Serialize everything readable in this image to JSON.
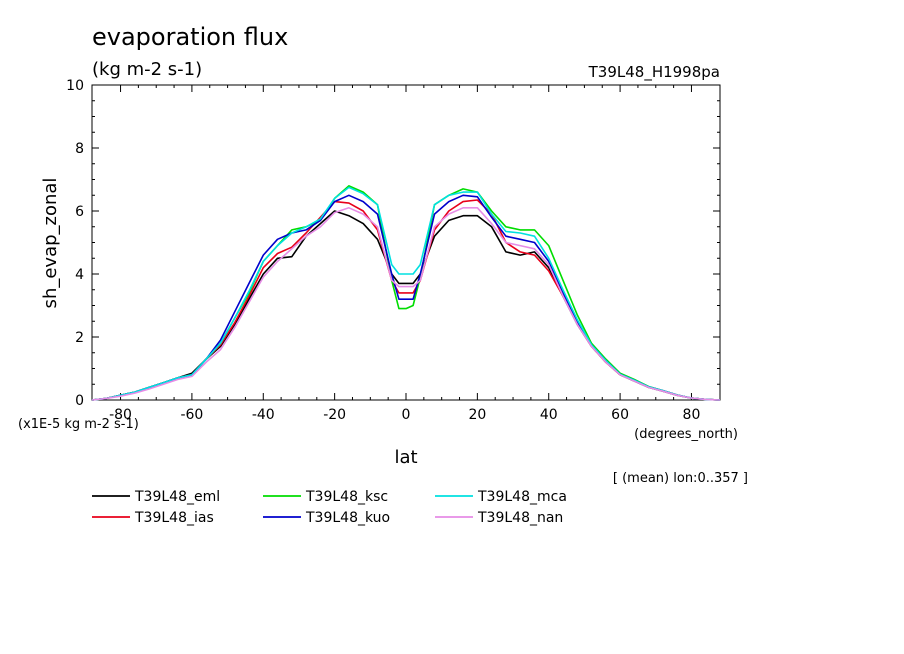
{
  "chart_data": {
    "type": "line",
    "title": "evaporation flux",
    "units_label": "(kg m-2 s-1)",
    "experiment": "T39L48_H1998pa",
    "ylabel": "sh_evap_zonal",
    "xlabel": "lat",
    "x_units": "(degrees_north)",
    "y_scale_note": "(x1E-5 kg m-2 s-1)",
    "mean_note": "[ (mean) lon:0..357 ]",
    "xlim": [
      -88,
      88
    ],
    "ylim": [
      0,
      10
    ],
    "x_ticks": [
      -80,
      -60,
      -40,
      -20,
      0,
      20,
      40,
      60,
      80
    ],
    "x_tick_labels": [
      "-80",
      "-60",
      "-40",
      "-20",
      "0",
      "20",
      "40",
      "60",
      "80"
    ],
    "y_ticks": [
      0,
      2,
      4,
      6,
      8,
      10
    ],
    "y_tick_labels": [
      "0",
      "2",
      "4",
      "6",
      "8",
      "10"
    ],
    "x": [
      -88,
      -84,
      -80,
      -76,
      -72,
      -68,
      -64,
      -60,
      -56,
      -52,
      -48,
      -44,
      -40,
      -36,
      -32,
      -28,
      -24,
      -20,
      -16,
      -12,
      -8,
      -4,
      -2,
      0,
      2,
      4,
      8,
      12,
      16,
      20,
      24,
      28,
      32,
      36,
      40,
      44,
      48,
      52,
      56,
      60,
      64,
      68,
      72,
      76,
      80,
      84,
      88
    ],
    "series": [
      {
        "name": "T39L48_eml",
        "color": "#000000",
        "values": [
          0.0,
          0.05,
          0.15,
          0.25,
          0.4,
          0.55,
          0.7,
          0.85,
          1.3,
          1.7,
          2.4,
          3.2,
          4.0,
          4.5,
          4.55,
          5.2,
          5.6,
          6.0,
          5.85,
          5.6,
          5.1,
          4.0,
          3.7,
          3.7,
          3.7,
          4.0,
          5.2,
          5.7,
          5.85,
          5.85,
          5.5,
          4.7,
          4.6,
          4.7,
          4.2,
          3.3,
          2.4,
          1.7,
          1.2,
          0.8,
          0.6,
          0.4,
          0.28,
          0.15,
          0.06,
          0.02,
          0.0
        ]
      },
      {
        "name": "T39L48_ias",
        "color": "#e8001a",
        "values": [
          0.0,
          0.05,
          0.15,
          0.25,
          0.4,
          0.55,
          0.7,
          0.8,
          1.3,
          1.75,
          2.45,
          3.3,
          4.2,
          4.65,
          4.85,
          5.3,
          5.8,
          6.3,
          6.25,
          6.0,
          5.4,
          3.8,
          3.4,
          3.4,
          3.4,
          3.8,
          5.4,
          6.0,
          6.3,
          6.35,
          5.9,
          5.0,
          4.7,
          4.6,
          4.1,
          3.3,
          2.45,
          1.7,
          1.2,
          0.8,
          0.62,
          0.42,
          0.3,
          0.16,
          0.06,
          0.02,
          0.0
        ]
      },
      {
        "name": "T39L48_ksc",
        "color": "#00dd00",
        "values": [
          0.0,
          0.05,
          0.15,
          0.25,
          0.4,
          0.55,
          0.7,
          0.8,
          1.3,
          1.8,
          2.6,
          3.4,
          4.4,
          4.9,
          5.4,
          5.5,
          5.7,
          6.4,
          6.8,
          6.6,
          6.2,
          3.8,
          2.9,
          2.9,
          3.0,
          3.9,
          6.2,
          6.5,
          6.7,
          6.6,
          6.0,
          5.5,
          5.4,
          5.4,
          4.9,
          3.8,
          2.7,
          1.8,
          1.3,
          0.85,
          0.65,
          0.43,
          0.3,
          0.16,
          0.06,
          0.02,
          0.0
        ]
      },
      {
        "name": "T39L48_kuo",
        "color": "#0000cc",
        "values": [
          0.0,
          0.05,
          0.15,
          0.25,
          0.4,
          0.55,
          0.7,
          0.8,
          1.3,
          1.9,
          2.8,
          3.7,
          4.6,
          5.1,
          5.3,
          5.4,
          5.7,
          6.3,
          6.5,
          6.3,
          5.9,
          4.0,
          3.2,
          3.2,
          3.2,
          4.0,
          5.9,
          6.3,
          6.5,
          6.45,
          5.8,
          5.2,
          5.1,
          5.0,
          4.4,
          3.4,
          2.5,
          1.75,
          1.25,
          0.82,
          0.63,
          0.42,
          0.3,
          0.16,
          0.06,
          0.02,
          0.0
        ]
      },
      {
        "name": "T39L48_mca",
        "color": "#00e0e0",
        "values": [
          0.0,
          0.05,
          0.15,
          0.25,
          0.4,
          0.55,
          0.7,
          0.8,
          1.3,
          1.8,
          2.6,
          3.45,
          4.4,
          4.9,
          5.3,
          5.5,
          5.75,
          6.4,
          6.75,
          6.55,
          6.2,
          4.3,
          4.0,
          4.0,
          4.0,
          4.3,
          6.2,
          6.5,
          6.6,
          6.6,
          5.9,
          5.35,
          5.3,
          5.2,
          4.5,
          3.5,
          2.55,
          1.75,
          1.25,
          0.82,
          0.63,
          0.42,
          0.3,
          0.16,
          0.06,
          0.02,
          0.0
        ]
      },
      {
        "name": "T39L48_nan",
        "color": "#e68ce6",
        "values": [
          0.0,
          0.05,
          0.12,
          0.22,
          0.35,
          0.5,
          0.65,
          0.75,
          1.2,
          1.6,
          2.3,
          3.1,
          3.9,
          4.4,
          4.8,
          5.2,
          5.5,
          5.95,
          6.1,
          5.9,
          5.5,
          3.8,
          3.6,
          3.6,
          3.6,
          3.8,
          5.5,
          5.9,
          6.1,
          6.1,
          5.6,
          5.0,
          4.9,
          4.8,
          4.3,
          3.3,
          2.4,
          1.7,
          1.2,
          0.8,
          0.6,
          0.4,
          0.28,
          0.15,
          0.06,
          0.02,
          0.0
        ]
      }
    ]
  }
}
